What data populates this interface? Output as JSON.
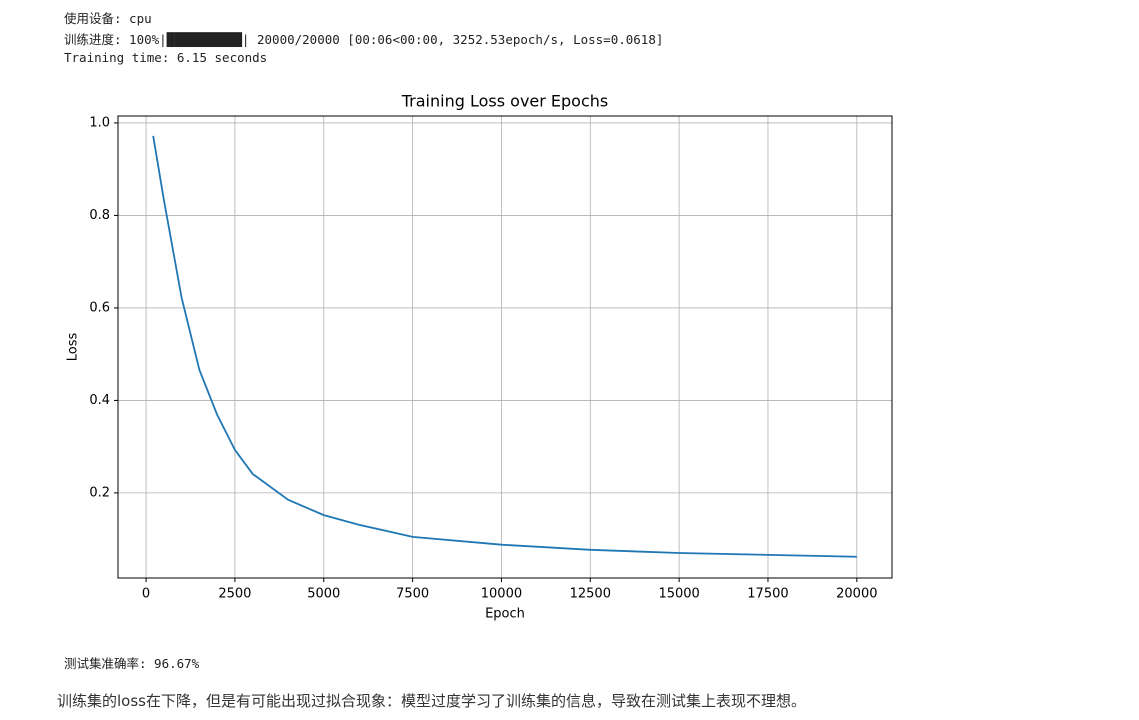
{
  "outputs": [
    "使用设备: cpu",
    "训练进度: 100%|██████████| 20000/20000 [00:06<00:00, 3252.53epoch/s, Loss=0.0618]",
    "Training time: 6.15 seconds"
  ],
  "chart_data": {
    "type": "line",
    "title": "Training Loss over Epochs",
    "xlabel": "Epoch",
    "ylabel": "Loss",
    "x": [
      200,
      500,
      1000,
      1500,
      2000,
      2500,
      3000,
      4000,
      5000,
      6000,
      7500,
      10000,
      12500,
      15000,
      17500,
      20000
    ],
    "series": [
      {
        "name": "Loss",
        "color": "#1f77b4",
        "values": [
          0.972,
          0.834,
          0.622,
          0.466,
          0.369,
          0.293,
          0.241,
          0.185,
          0.152,
          0.131,
          0.105,
          0.088,
          0.077,
          0.07,
          0.066,
          0.062
        ]
      }
    ],
    "xlim": [
      -790,
      20990
    ],
    "ylim": [
      0.016,
      1.015
    ],
    "xticks": [
      0,
      2500,
      5000,
      7500,
      10000,
      12500,
      15000,
      17500,
      20000
    ],
    "yticks": [
      0.2,
      0.4,
      0.6,
      0.8,
      {
        "value": 1,
        "label": "1.0"
      }
    ],
    "grid": true
  },
  "accuracy": "测试集准确率: 96.67%",
  "note": "训练集的loss在下降，但是有可能出现过拟合现象：模型过度学习了训练集的信息，导致在测试集上表现不理想。"
}
